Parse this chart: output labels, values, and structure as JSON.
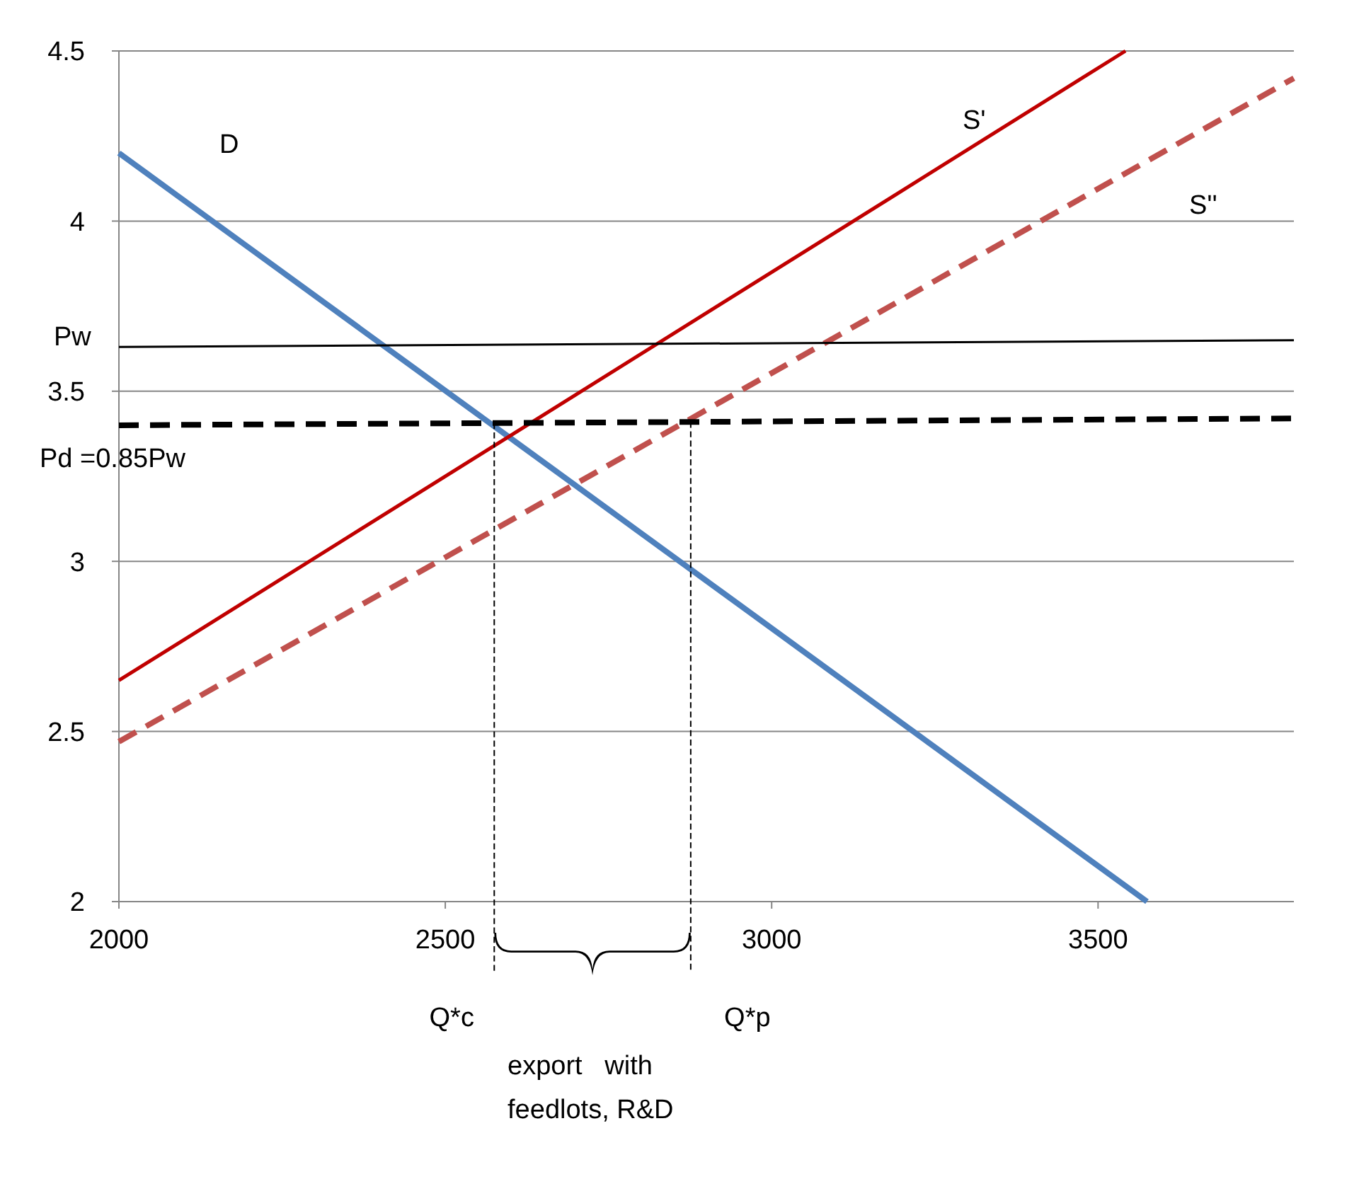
{
  "chart_data": {
    "type": "line",
    "xlim": [
      2000,
      3800
    ],
    "ylim": [
      2,
      4.5
    ],
    "xticks": [
      2000,
      2500,
      3000,
      3500
    ],
    "yticks": [
      2,
      2.5,
      3,
      3.5,
      4,
      4.5
    ],
    "grid": "y",
    "legend": false,
    "marker": "none",
    "series": [
      {
        "name": "D",
        "color": "#4f81bd",
        "x": [
          2000,
          3575
        ],
        "values": [
          4.2,
          2.0
        ]
      },
      {
        "name": "S'",
        "color": "#c00000",
        "x": [
          2000,
          3542
        ],
        "values": [
          2.65,
          4.5
        ]
      },
      {
        "name": "S''",
        "color": "#c0504d",
        "line_style": "dashed",
        "x": [
          2000,
          3800
        ],
        "values": [
          2.47,
          4.42
        ]
      },
      {
        "name": "Pw",
        "color": "#000000",
        "x": [
          2000,
          3800
        ],
        "values": [
          3.63,
          3.65
        ]
      },
      {
        "name": "Pd =0.85Pw",
        "color": "#000000",
        "line_style": "dashed",
        "x": [
          2000,
          3800
        ],
        "values": [
          3.4,
          3.42
        ]
      }
    ],
    "ref_lines": [
      {
        "axis": "x",
        "value": 2575,
        "label": "Q*c",
        "line_style": "dashed",
        "color": "#000000"
      },
      {
        "axis": "x",
        "value": 2876,
        "label": "Q*p",
        "line_style": "dashed",
        "color": "#000000"
      }
    ],
    "annotations": [
      "export   with\nfeedlots, R&D"
    ]
  }
}
